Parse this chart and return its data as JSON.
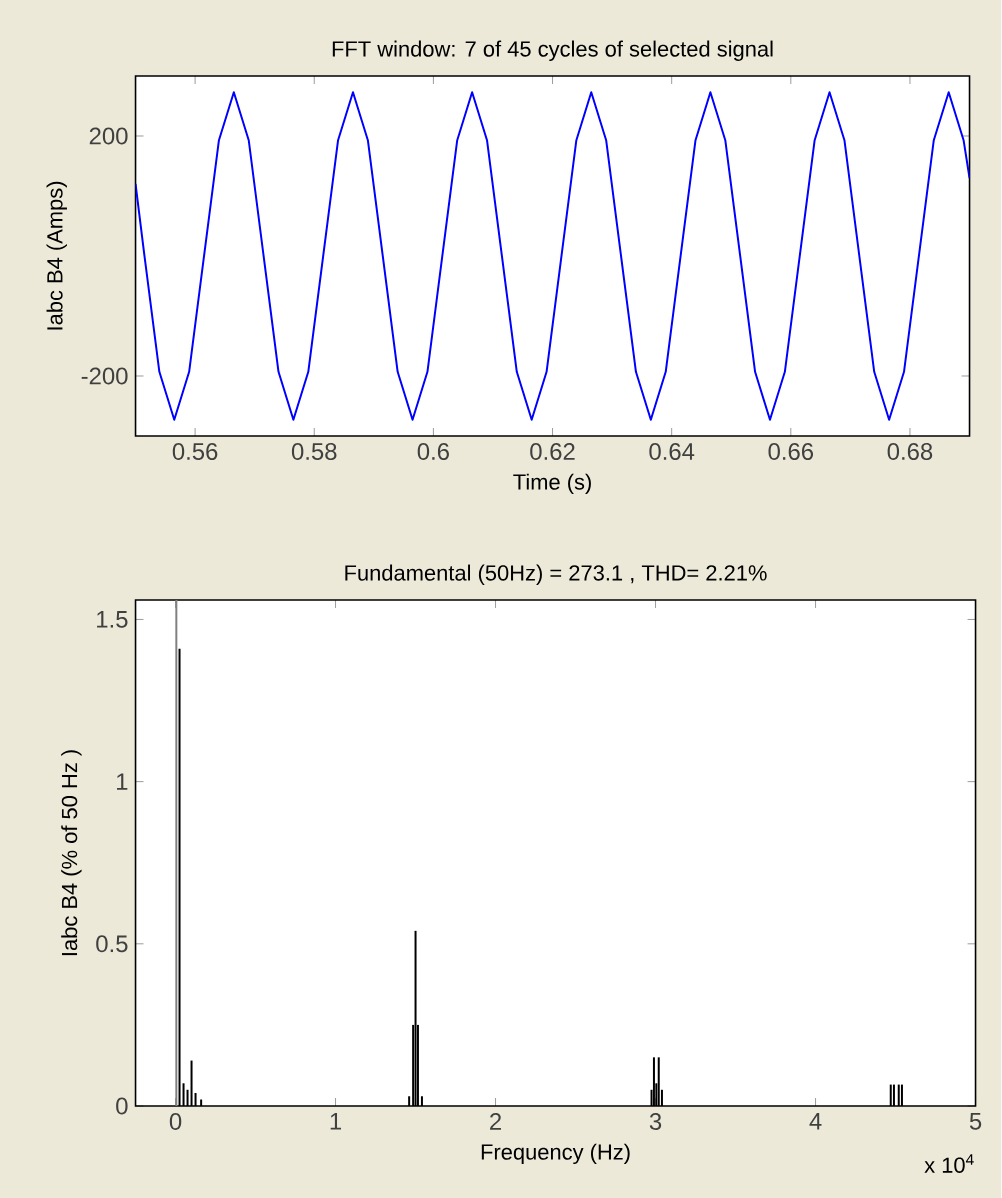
{
  "chart_data": [
    {
      "type": "line",
      "title": "FFT window: 7 of 45 cycles of selected signal",
      "xlabel": "Time (s)",
      "ylabel": "Iabc B4 (Amps)",
      "xlim": [
        0.55,
        0.69
      ],
      "ylim": [
        -300,
        300
      ],
      "xticks": [
        0.56,
        0.58,
        0.6,
        0.62,
        0.64,
        0.66,
        0.68
      ],
      "yticks": [
        -200,
        200
      ],
      "marker": "none",
      "line_style": "solid",
      "series": [
        {
          "color": "#0000ff",
          "x": [
            0.55,
            0.5515,
            0.554,
            0.5565,
            0.559,
            0.5615,
            0.564,
            0.5665,
            0.569,
            0.5715,
            0.574,
            0.5765,
            0.579,
            0.5815,
            0.584,
            0.5865,
            0.589,
            0.5915,
            0.594,
            0.5965,
            0.599,
            0.6015,
            0.604,
            0.6065,
            0.609,
            0.6115,
            0.614,
            0.6165,
            0.619,
            0.6215,
            0.624,
            0.6265,
            0.629,
            0.6315,
            0.634,
            0.6365,
            0.639,
            0.6415,
            0.644,
            0.6465,
            0.649,
            0.6515,
            0.654,
            0.6565,
            0.659,
            0.6615,
            0.664,
            0.6665,
            0.669,
            0.6715,
            0.674,
            0.6765,
            0.679,
            0.6815,
            0.684,
            0.6865,
            0.689,
            0.69
          ],
          "values": [
            120,
            0,
            -193,
            -273,
            -193,
            0,
            193,
            273,
            193,
            0,
            -193,
            -273,
            -193,
            0,
            193,
            273,
            193,
            0,
            -193,
            -273,
            -193,
            0,
            193,
            273,
            193,
            0,
            -193,
            -273,
            -193,
            0,
            193,
            273,
            193,
            0,
            -193,
            -273,
            -193,
            0,
            193,
            273,
            193,
            0,
            -193,
            -273,
            -193,
            0,
            193,
            273,
            193,
            0,
            -193,
            -273,
            -193,
            0,
            193,
            273,
            193,
            130
          ]
        }
      ]
    },
    {
      "type": "bar",
      "title": "Fundamental (50Hz) = 273.1 , THD= 2.21%",
      "xlabel": "Frequency (Hz)",
      "ylabel": "Iabc B4 (% of 50 Hz )",
      "xlim": [
        -0.25,
        5
      ],
      "ylim": [
        0,
        1.56
      ],
      "xticks": [
        0,
        1,
        2,
        3,
        4,
        5
      ],
      "yticks": [
        0,
        0.5,
        1,
        1.5
      ],
      "annotations": [
        "x 10$^{4}$"
      ],
      "x": [
        0.005,
        0.025,
        0.05,
        0.075,
        0.1,
        0.125,
        0.16,
        1.46,
        1.485,
        1.5,
        1.515,
        1.54,
        2.975,
        2.99,
        3.005,
        3.02,
        3.04,
        4.47,
        4.49,
        4.52,
        4.54
      ],
      "values": [
        1.56,
        1.41,
        0.07,
        0.05,
        0.14,
        0.04,
        0.02,
        0.03,
        0.25,
        0.54,
        0.25,
        0.03,
        0.05,
        0.15,
        0.07,
        0.15,
        0.05,
        0.066,
        0.066,
        0.066,
        0.066
      ],
      "colors": [
        "#808080",
        "#000000",
        "#000000",
        "#000000",
        "#000000",
        "#000000",
        "#000000",
        "#000000",
        "#000000",
        "#000000",
        "#000000",
        "#000000",
        "#000000",
        "#000000",
        "#000000",
        "#000000",
        "#000000",
        "#000000",
        "#000000",
        "#000000",
        "#000000"
      ]
    }
  ]
}
